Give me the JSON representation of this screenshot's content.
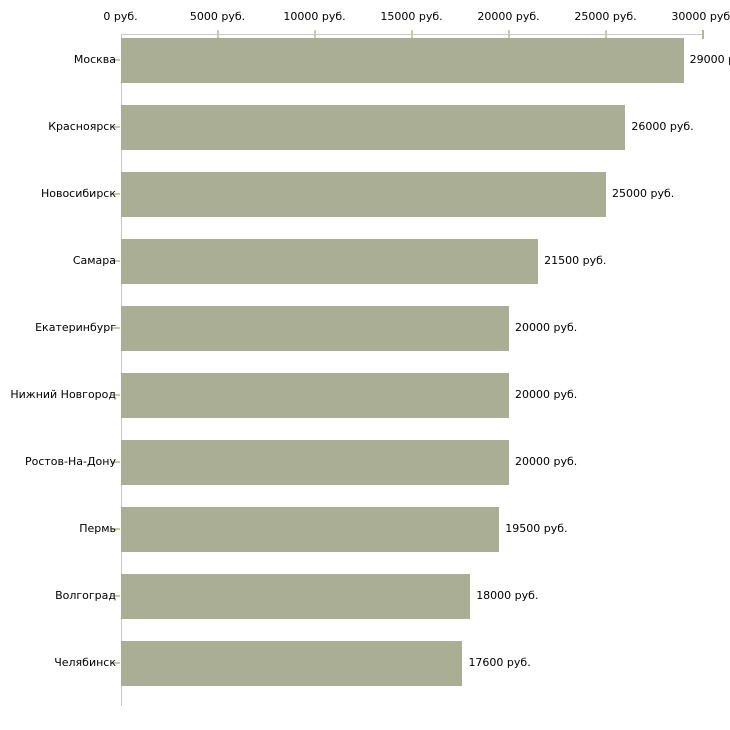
{
  "chart_data": {
    "type": "bar",
    "orientation": "horizontal",
    "title": "",
    "xlabel": "",
    "ylabel": "",
    "xlim": [
      0,
      30000
    ],
    "grid": "off",
    "legend": "none",
    "x_ticks": [
      0,
      5000,
      10000,
      15000,
      20000,
      25000,
      30000
    ],
    "x_tick_labels": [
      "0 руб.",
      "5000 руб.",
      "10000 руб.",
      "15000 руб.",
      "20000 руб.",
      "25000 руб.",
      "30000 руб."
    ],
    "categories": [
      "Москва",
      "Красноярск",
      "Новосибирск",
      "Самара",
      "Екатеринбург",
      "Нижний Новгород",
      "Ростов-На-Дону",
      "Пермь",
      "Волгоград",
      "Челябинск"
    ],
    "values": [
      29000,
      26000,
      25000,
      21500,
      20000,
      20000,
      20000,
      19500,
      18000,
      17600
    ],
    "bar_labels": [
      "29000 р",
      "26000 руб.",
      "25000 руб.",
      "21500 руб.",
      "20000 руб.",
      "20000 руб.",
      "20000 руб.",
      "19500 руб.",
      "18000 руб.",
      "17600 руб."
    ],
    "colors": {
      "bar": "#a9ae95",
      "axis_line": "#c8c8c8",
      "tick_mark": "#c9cda0",
      "end_tick_mark": "#b4b795",
      "text": "#000000",
      "background": "#ffffff"
    }
  }
}
